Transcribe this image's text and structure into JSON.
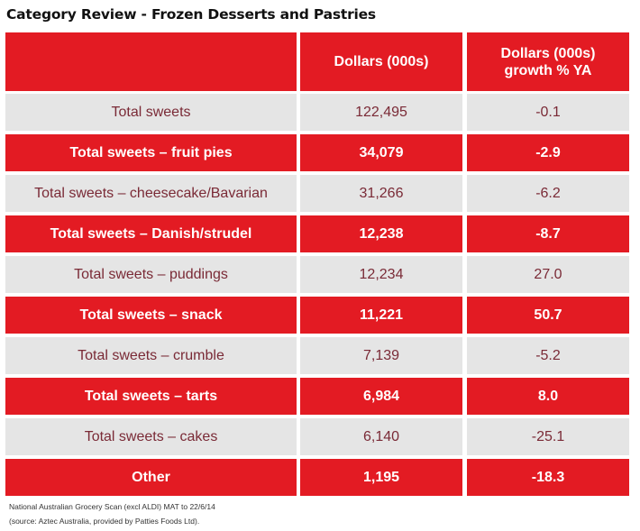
{
  "title": "Category Review - Frozen Desserts and Pastries",
  "chart_data": {
    "type": "table",
    "columns": [
      "",
      "Dollars (000s)",
      "Dollars (000s) growth % YA"
    ],
    "rows": [
      {
        "label": "Total sweets",
        "dollars": "122,495",
        "growth": "-0.1",
        "style": "grey"
      },
      {
        "label": "Total sweets – fruit pies",
        "dollars": "34,079",
        "growth": "-2.9",
        "style": "red"
      },
      {
        "label": "Total sweets – cheesecake/Bavarian",
        "dollars": "31,266",
        "growth": "-6.2",
        "style": "grey"
      },
      {
        "label": "Total sweets – Danish/strudel",
        "dollars": "12,238",
        "growth": "-8.7",
        "style": "red"
      },
      {
        "label": "Total sweets – puddings",
        "dollars": "12,234",
        "growth": "27.0",
        "style": "grey"
      },
      {
        "label": "Total sweets – snack",
        "dollars": "11,221",
        "growth": "50.7",
        "style": "red"
      },
      {
        "label": "Total sweets – crumble",
        "dollars": "7,139",
        "growth": "-5.2",
        "style": "grey"
      },
      {
        "label": "Total sweets – tarts",
        "dollars": "6,984",
        "growth": "8.0",
        "style": "red"
      },
      {
        "label": "Total sweets – cakes",
        "dollars": "6,140",
        "growth": "-25.1",
        "style": "grey"
      },
      {
        "label": "Other",
        "dollars": "1,195",
        "growth": "-18.3",
        "style": "red"
      }
    ],
    "colors": {
      "red": "#e31b23",
      "grey": "#e5e5e5",
      "grey_text": "#7a2a36"
    }
  },
  "footnote": {
    "line1": "National Australian Grocery Scan (excl ALDI) MAT to 22/6/14",
    "line2": "(source: Aztec Australia, provided by Patties Foods Ltd)."
  }
}
